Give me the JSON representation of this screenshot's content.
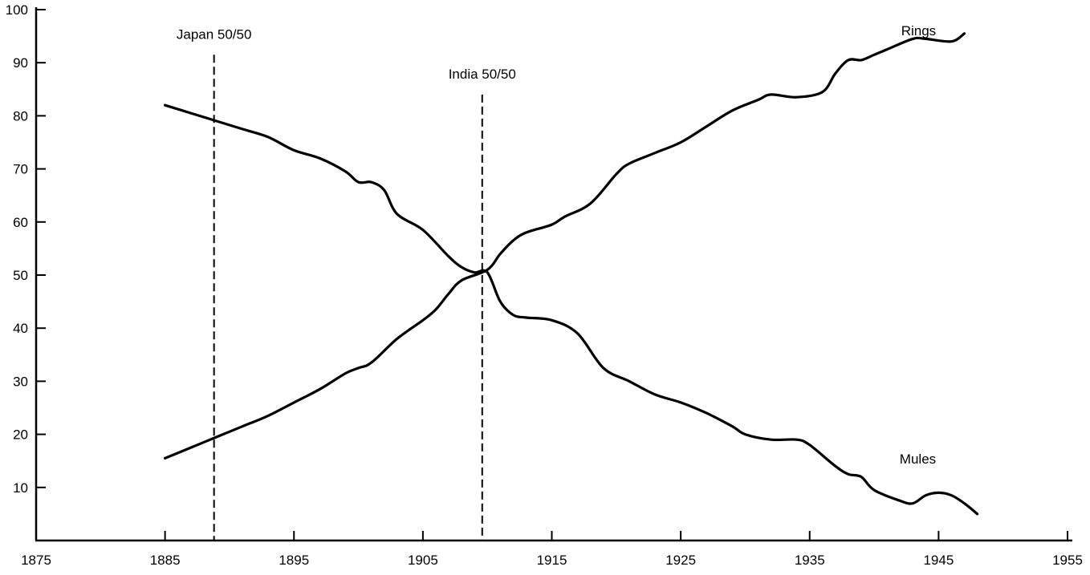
{
  "chart_data": {
    "type": "line",
    "title": "",
    "xlabel": "",
    "ylabel": "",
    "xlim": [
      1875,
      1955
    ],
    "ylim": [
      0,
      100
    ],
    "x_ticks": [
      1875,
      1885,
      1895,
      1905,
      1915,
      1925,
      1935,
      1945,
      1955
    ],
    "y_ticks": [
      10,
      20,
      30,
      40,
      50,
      60,
      70,
      80,
      90,
      100
    ],
    "grid": false,
    "legend": "none",
    "series": [
      {
        "name": "Rings",
        "points": [
          [
            1885,
            15.5
          ],
          [
            1887,
            17.5
          ],
          [
            1889,
            19.5
          ],
          [
            1891,
            21.5
          ],
          [
            1893,
            23.5
          ],
          [
            1895,
            26
          ],
          [
            1897,
            28.5
          ],
          [
            1899,
            31.5
          ],
          [
            1900,
            32.5
          ],
          [
            1901,
            33.5
          ],
          [
            1903,
            38
          ],
          [
            1905,
            41.5
          ],
          [
            1906,
            43.5
          ],
          [
            1907,
            46.5
          ],
          [
            1908,
            49
          ],
          [
            1910,
            51
          ],
          [
            1911,
            54
          ],
          [
            1912,
            56.5
          ],
          [
            1913,
            58
          ],
          [
            1915,
            59.5
          ],
          [
            1916,
            61
          ],
          [
            1918,
            63.5
          ],
          [
            1920,
            69
          ],
          [
            1921,
            71
          ],
          [
            1923,
            73
          ],
          [
            1925,
            75
          ],
          [
            1927,
            78
          ],
          [
            1929,
            81
          ],
          [
            1931,
            83
          ],
          [
            1932,
            84
          ],
          [
            1934,
            83.5
          ],
          [
            1936,
            84.5
          ],
          [
            1937,
            88
          ],
          [
            1938,
            90.5
          ],
          [
            1939,
            90.5
          ],
          [
            1940,
            91.5
          ],
          [
            1941,
            92.5
          ],
          [
            1943,
            94.5
          ],
          [
            1944,
            94.5
          ],
          [
            1946,
            94
          ],
          [
            1947,
            95.5
          ]
        ]
      },
      {
        "name": "Mules",
        "points": [
          [
            1885,
            82
          ],
          [
            1887,
            80.5
          ],
          [
            1889,
            79
          ],
          [
            1891,
            77.5
          ],
          [
            1893,
            76
          ],
          [
            1895,
            73.5
          ],
          [
            1897,
            72
          ],
          [
            1899,
            69.5
          ],
          [
            1900,
            67.5
          ],
          [
            1901,
            67.5
          ],
          [
            1902,
            66
          ],
          [
            1903,
            61.5
          ],
          [
            1905,
            58.5
          ],
          [
            1907,
            53.5
          ],
          [
            1908,
            51.5
          ],
          [
            1909,
            50.5
          ],
          [
            1910,
            50.5
          ],
          [
            1911,
            45
          ],
          [
            1912,
            42.5
          ],
          [
            1913,
            42
          ],
          [
            1915,
            41.5
          ],
          [
            1917,
            39
          ],
          [
            1919,
            32.5
          ],
          [
            1921,
            30
          ],
          [
            1923,
            27.5
          ],
          [
            1925,
            26
          ],
          [
            1927,
            24
          ],
          [
            1929,
            21.5
          ],
          [
            1930,
            20
          ],
          [
            1932,
            19
          ],
          [
            1934,
            19
          ],
          [
            1935,
            18
          ],
          [
            1937,
            14
          ],
          [
            1938,
            12.5
          ],
          [
            1939,
            12
          ],
          [
            1940,
            9.5
          ],
          [
            1942,
            7.5
          ],
          [
            1943,
            7
          ],
          [
            1944,
            8.5
          ],
          [
            1945,
            9
          ],
          [
            1946,
            8.5
          ],
          [
            1947,
            7
          ],
          [
            1948,
            5
          ]
        ]
      }
    ],
    "series_labels": [
      {
        "text": "Rings",
        "x": 1944.8,
        "y": 95.2
      },
      {
        "text": "Mules",
        "x": 1944.8,
        "y": 14.5
      }
    ],
    "vertical_markers": [
      {
        "label": "Japan 50/50",
        "x": 1888.8,
        "y_top": 91.5
      },
      {
        "label": "India 50/50",
        "x": 1909.6,
        "y_top": 84
      }
    ]
  }
}
